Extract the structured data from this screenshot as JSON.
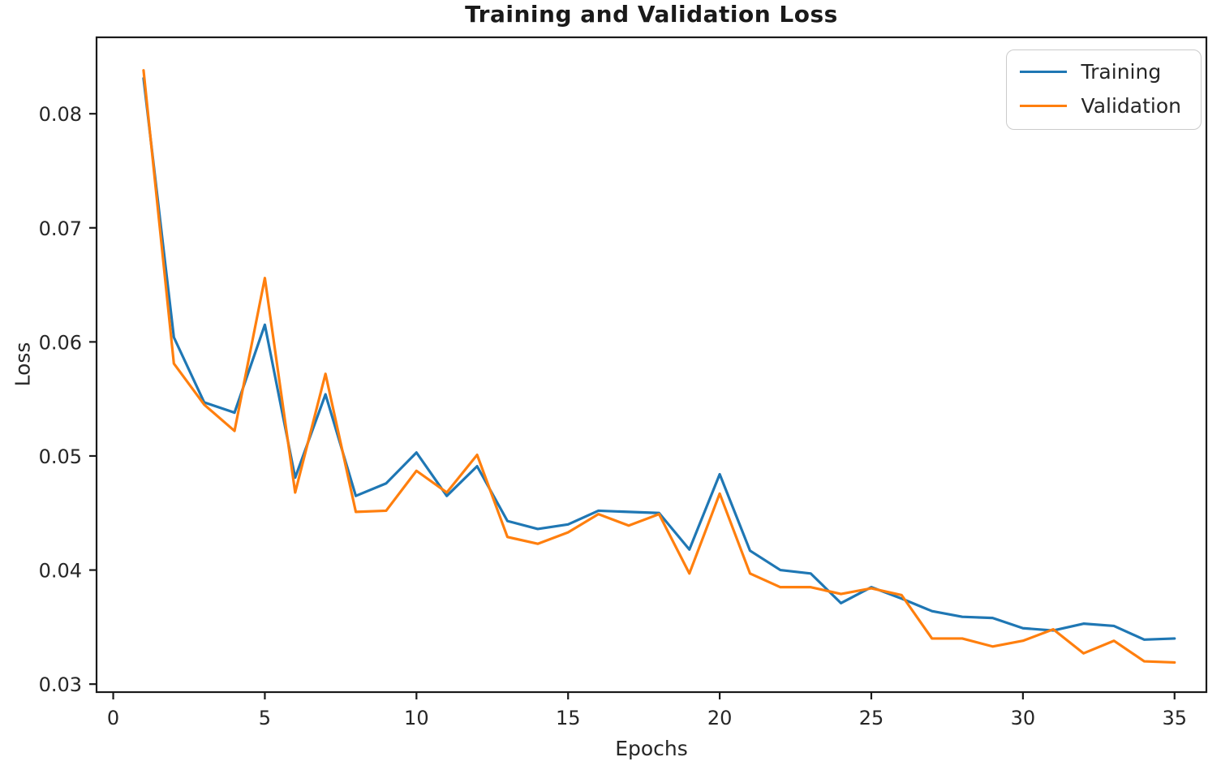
{
  "chart_data": {
    "type": "line",
    "title": "Training and Validation Loss",
    "xlabel": "Epochs",
    "ylabel": "Loss",
    "x": [
      1,
      2,
      3,
      4,
      5,
      6,
      7,
      8,
      9,
      10,
      11,
      12,
      13,
      14,
      15,
      16,
      17,
      18,
      19,
      20,
      21,
      22,
      23,
      24,
      25,
      26,
      27,
      28,
      29,
      30,
      31,
      32,
      33,
      34,
      35
    ],
    "series": [
      {
        "name": "Training",
        "color": "#1f77b4",
        "values": [
          0.0831,
          0.0604,
          0.0547,
          0.0538,
          0.0615,
          0.0481,
          0.0554,
          0.0465,
          0.0476,
          0.0503,
          0.0465,
          0.0491,
          0.0443,
          0.0436,
          0.044,
          0.0452,
          0.0451,
          0.045,
          0.0418,
          0.0484,
          0.0417,
          0.04,
          0.0397,
          0.0371,
          0.0385,
          0.0375,
          0.0364,
          0.0359,
          0.0358,
          0.0349,
          0.0347,
          0.0353,
          0.0351,
          0.0339,
          0.034
        ]
      },
      {
        "name": "Validation",
        "color": "#ff7f0e",
        "values": [
          0.0838,
          0.0581,
          0.0545,
          0.0522,
          0.0656,
          0.0468,
          0.0572,
          0.0451,
          0.0452,
          0.0487,
          0.0468,
          0.0501,
          0.0429,
          0.0423,
          0.0433,
          0.0449,
          0.0439,
          0.0449,
          0.0397,
          0.0467,
          0.0397,
          0.0385,
          0.0385,
          0.0379,
          0.0384,
          0.0378,
          0.034,
          0.034,
          0.0333,
          0.0338,
          0.0348,
          0.0327,
          0.0338,
          0.032,
          0.0319
        ]
      }
    ],
    "xlim": [
      -0.55,
      36.05
    ],
    "ylim": [
      0.0293,
      0.0867
    ],
    "xticks": [
      0,
      5,
      10,
      15,
      20,
      25,
      30,
      35
    ],
    "yticks": [
      0.03,
      0.04,
      0.05,
      0.06,
      0.07,
      0.08
    ],
    "grid": false,
    "legend_position": "upper right",
    "frame_color": "#1a1a1a",
    "text_color": "#262626",
    "line_width": 3.2
  }
}
